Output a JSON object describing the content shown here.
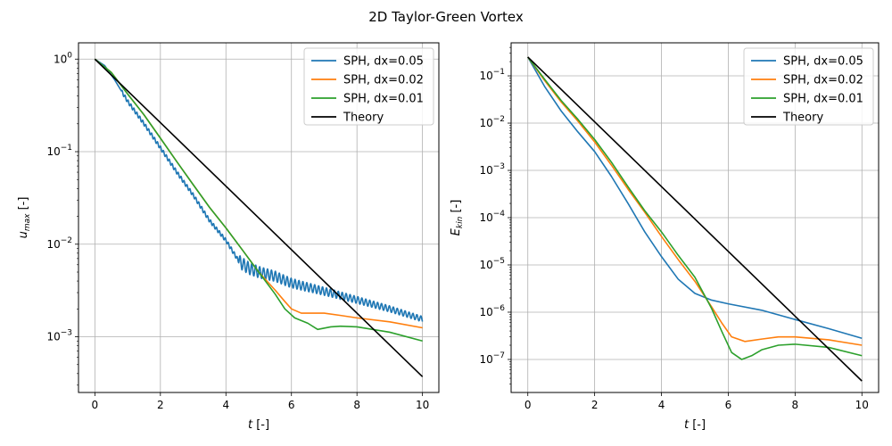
{
  "figure": {
    "title": "2D Taylor-Green Vortex"
  },
  "chart_data": [
    {
      "type": "line",
      "title": "",
      "xlabel": "t [-]",
      "xlabel_parts": {
        "var": "t",
        "unit": " [-]"
      },
      "ylabel": "u_max [-]",
      "ylabel_parts": {
        "base": "u",
        "sub": "max",
        "unit": " [-]"
      },
      "xlim": [
        -0.5,
        10.5
      ],
      "ylim": [
        0.00025,
        1.5
      ],
      "yscale": "log",
      "grid": true,
      "legend_position": "top-right",
      "xticks": [
        0,
        2,
        4,
        6,
        8,
        10
      ],
      "xtick_labels": [
        "0",
        "2",
        "4",
        "6",
        "8",
        "10"
      ],
      "yticks": [
        {
          "value": 1,
          "base": "10",
          "exp": "0"
        },
        {
          "value": 0.1,
          "base": "10",
          "exp": "−1"
        },
        {
          "value": 0.01,
          "base": "10",
          "exp": "−2"
        },
        {
          "value": 0.001,
          "base": "10",
          "exp": "−3"
        }
      ],
      "series": [
        {
          "name": "SPH, dx=0.05",
          "color": "#1f77b4",
          "oscillation": {
            "from": 4.4,
            "to": 10,
            "amplitude": 0.05,
            "period": 0.12
          },
          "x": [
            0,
            0.3,
            0.6,
            1.0,
            1.5,
            2.0,
            2.5,
            3.0,
            3.5,
            4.0,
            4.4,
            4.7,
            5.0,
            5.5,
            6.0,
            7.0,
            8.0,
            9.0,
            10.0
          ],
          "y": [
            1.0,
            0.85,
            0.6,
            0.35,
            0.2,
            0.11,
            0.06,
            0.034,
            0.018,
            0.011,
            0.0065,
            0.0055,
            0.005,
            0.0045,
            0.0038,
            0.0031,
            0.0025,
            0.002,
            0.00155
          ]
        },
        {
          "name": "SPH, dx=0.02",
          "color": "#ff7f0e",
          "x": [
            0,
            0.5,
            1.0,
            1.5,
            2.0,
            2.5,
            3.0,
            3.5,
            4.0,
            4.5,
            5.0,
            5.5,
            5.8,
            6.0,
            6.3,
            7.0,
            7.5,
            8.0,
            9.0,
            10.0
          ],
          "y": [
            1.0,
            0.72,
            0.42,
            0.25,
            0.14,
            0.078,
            0.044,
            0.025,
            0.015,
            0.0087,
            0.005,
            0.0032,
            0.0024,
            0.002,
            0.0018,
            0.0018,
            0.0017,
            0.0016,
            0.00145,
            0.00125
          ]
        },
        {
          "name": "SPH, dx=0.01",
          "color": "#2ca02c",
          "x": [
            0,
            0.5,
            1.0,
            1.5,
            2.0,
            2.5,
            3.0,
            3.5,
            4.0,
            4.5,
            5.0,
            5.5,
            5.8,
            6.1,
            6.5,
            6.8,
            7.2,
            7.5,
            8.0,
            9.0,
            10.0
          ],
          "y": [
            1.0,
            0.72,
            0.42,
            0.25,
            0.14,
            0.078,
            0.044,
            0.025,
            0.015,
            0.0087,
            0.005,
            0.0029,
            0.002,
            0.0016,
            0.0014,
            0.0012,
            0.00128,
            0.0013,
            0.00128,
            0.00112,
            0.0009
          ]
        },
        {
          "name": "Theory",
          "color": "#000000",
          "x": [
            0,
            10
          ],
          "y": [
            1.0,
            0.00037
          ]
        }
      ]
    },
    {
      "type": "line",
      "title": "",
      "xlabel": "t [-]",
      "xlabel_parts": {
        "var": "t",
        "unit": " [-]"
      },
      "ylabel": "E_kin [-]",
      "ylabel_parts": {
        "base": "E",
        "sub": "kin",
        "unit": " [-]"
      },
      "xlim": [
        -0.5,
        10.5
      ],
      "ylim": [
        2e-08,
        0.5
      ],
      "yscale": "log",
      "grid": true,
      "legend_position": "top-right",
      "xticks": [
        0,
        2,
        4,
        6,
        8,
        10
      ],
      "xtick_labels": [
        "0",
        "2",
        "4",
        "6",
        "8",
        "10"
      ],
      "yticks": [
        {
          "value": 0.1,
          "base": "10",
          "exp": "−1"
        },
        {
          "value": 0.01,
          "base": "10",
          "exp": "−2"
        },
        {
          "value": 0.001,
          "base": "10",
          "exp": "−3"
        },
        {
          "value": 0.0001,
          "base": "10",
          "exp": "−4"
        },
        {
          "value": 1e-05,
          "base": "10",
          "exp": "−5"
        },
        {
          "value": 1e-06,
          "base": "10",
          "exp": "−6"
        },
        {
          "value": 1e-07,
          "base": "10",
          "exp": "−7"
        }
      ],
      "series": [
        {
          "name": "SPH, dx=0.05",
          "color": "#1f77b4",
          "x": [
            0,
            0.5,
            1.0,
            1.5,
            2.0,
            2.5,
            3.0,
            3.5,
            4.0,
            4.5,
            5.0,
            5.5,
            6.0,
            7.0,
            8.0,
            9.0,
            10.0
          ],
          "y": [
            0.25,
            0.06,
            0.018,
            0.0065,
            0.0025,
            0.00075,
            0.0002,
            5e-05,
            1.5e-05,
            5e-06,
            2.5e-06,
            1.8e-06,
            1.5e-06,
            1.1e-06,
            7e-07,
            4.5e-07,
            2.8e-07
          ]
        },
        {
          "name": "SPH, dx=0.02",
          "color": "#ff7f0e",
          "x": [
            0,
            0.5,
            1.0,
            1.5,
            2.0,
            2.5,
            3.0,
            3.5,
            4.0,
            4.5,
            5.0,
            5.5,
            5.8,
            6.1,
            6.5,
            7.0,
            7.5,
            8.0,
            9.0,
            10.0
          ],
          "y": [
            0.25,
            0.08,
            0.028,
            0.011,
            0.004,
            0.0013,
            0.0004,
            0.00013,
            4e-05,
            1.3e-05,
            4.5e-06,
            1.3e-06,
            6e-07,
            3e-07,
            2.4e-07,
            2.7e-07,
            3e-07,
            3e-07,
            2.6e-07,
            2e-07
          ]
        },
        {
          "name": "SPH, dx=0.01",
          "color": "#2ca02c",
          "x": [
            0,
            0.5,
            1.0,
            1.5,
            2.0,
            2.5,
            3.0,
            3.5,
            4.0,
            4.5,
            5.0,
            5.5,
            5.8,
            6.1,
            6.4,
            6.7,
            7.0,
            7.5,
            8.0,
            9.0,
            10.0
          ],
          "y": [
            0.25,
            0.085,
            0.03,
            0.012,
            0.0045,
            0.0015,
            0.00045,
            0.00014,
            5e-05,
            1.6e-05,
            5.5e-06,
            1.2e-06,
            4e-07,
            1.4e-07,
            1e-07,
            1.2e-07,
            1.6e-07,
            2e-07,
            2.1e-07,
            1.8e-07,
            1.2e-07
          ]
        },
        {
          "name": "Theory",
          "color": "#000000",
          "x": [
            0,
            10
          ],
          "y": [
            0.25,
            3.5e-08
          ]
        }
      ]
    }
  ]
}
